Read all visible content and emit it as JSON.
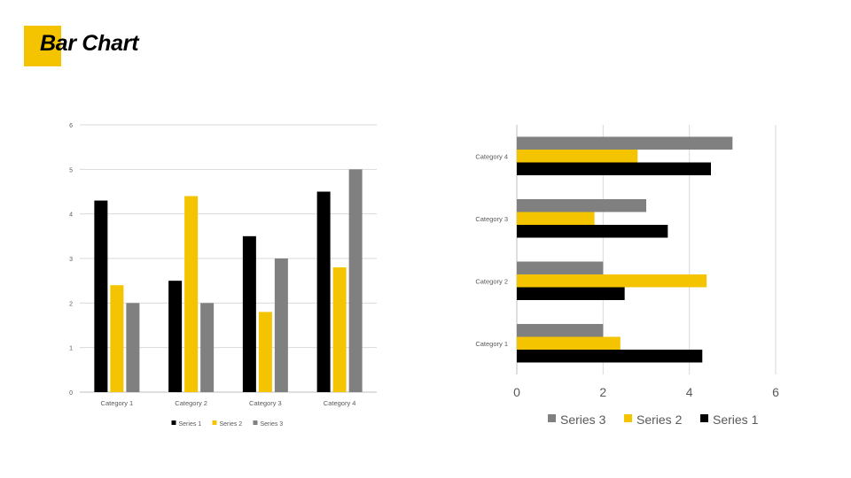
{
  "slide": {
    "title": "Bar Chart",
    "accent_color": "#F5C400"
  },
  "chart_data": [
    {
      "type": "bar",
      "orientation": "vertical",
      "categories": [
        "Category 1",
        "Category 2",
        "Category 3",
        "Category 4"
      ],
      "series": [
        {
          "name": "Series 1",
          "values": [
            4.3,
            2.5,
            3.5,
            4.5
          ],
          "color": "#000000"
        },
        {
          "name": "Series 2",
          "values": [
            2.4,
            4.4,
            1.8,
            2.8
          ],
          "color": "#F5C400"
        },
        {
          "name": "Series 3",
          "values": [
            2,
            2,
            3,
            5
          ],
          "color": "#808080"
        }
      ],
      "yticks": [
        0,
        1,
        2,
        3,
        4,
        5,
        6
      ],
      "ylim": [
        0,
        6
      ],
      "grid": true,
      "legend": "bottom"
    },
    {
      "type": "bar",
      "orientation": "horizontal",
      "categories": [
        "Category 1",
        "Category 2",
        "Category 3",
        "Category 4"
      ],
      "series": [
        {
          "name": "Series 1",
          "values": [
            4.3,
            2.5,
            3.5,
            4.5
          ],
          "color": "#000000"
        },
        {
          "name": "Series 2",
          "values": [
            2.4,
            4.4,
            1.8,
            2.8
          ],
          "color": "#F5C400"
        },
        {
          "name": "Series 3",
          "values": [
            2,
            2,
            3,
            5
          ],
          "color": "#808080"
        }
      ],
      "xticks": [
        0,
        2,
        4,
        6
      ],
      "xlim": [
        0,
        6
      ],
      "grid": true,
      "legend": "bottom",
      "legend_order": [
        "Series 3",
        "Series 2",
        "Series 1"
      ]
    }
  ]
}
